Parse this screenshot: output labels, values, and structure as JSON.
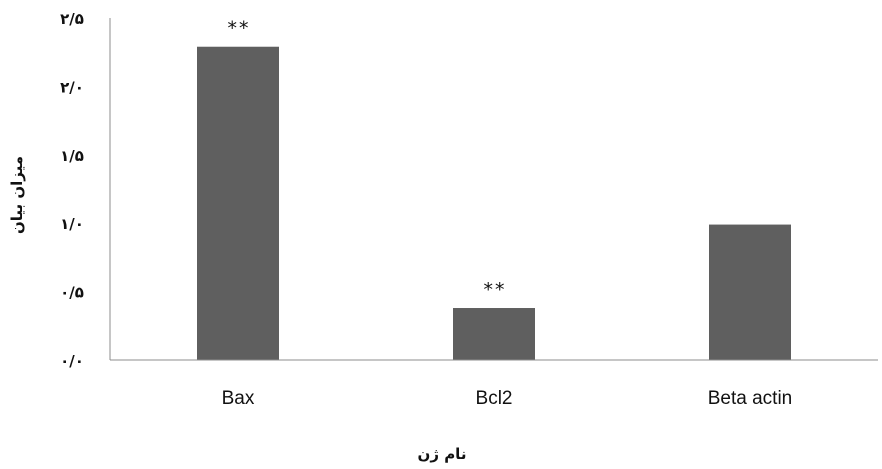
{
  "chart_data": {
    "type": "bar",
    "categories": [
      "Bax",
      "Bcl2",
      "Beta actin"
    ],
    "values": [
      2.29,
      0.38,
      0.99
    ],
    "annotations": [
      "**",
      "**",
      ""
    ],
    "xlabel": "نام ژن",
    "ylabel": "میزان بیان",
    "ylim": [
      0,
      2.5
    ],
    "yticks": [
      0,
      0.5,
      1.0,
      1.5,
      2.0,
      2.5
    ],
    "ytick_labels": [
      "۰/۰",
      "۰/۵",
      "۱/۰",
      "۱/۵",
      "۲/۰",
      "۲/۵"
    ],
    "grid": false,
    "legend": "none",
    "bar_color": "#5f5f5f",
    "axis_color": "#8c8c8c"
  }
}
